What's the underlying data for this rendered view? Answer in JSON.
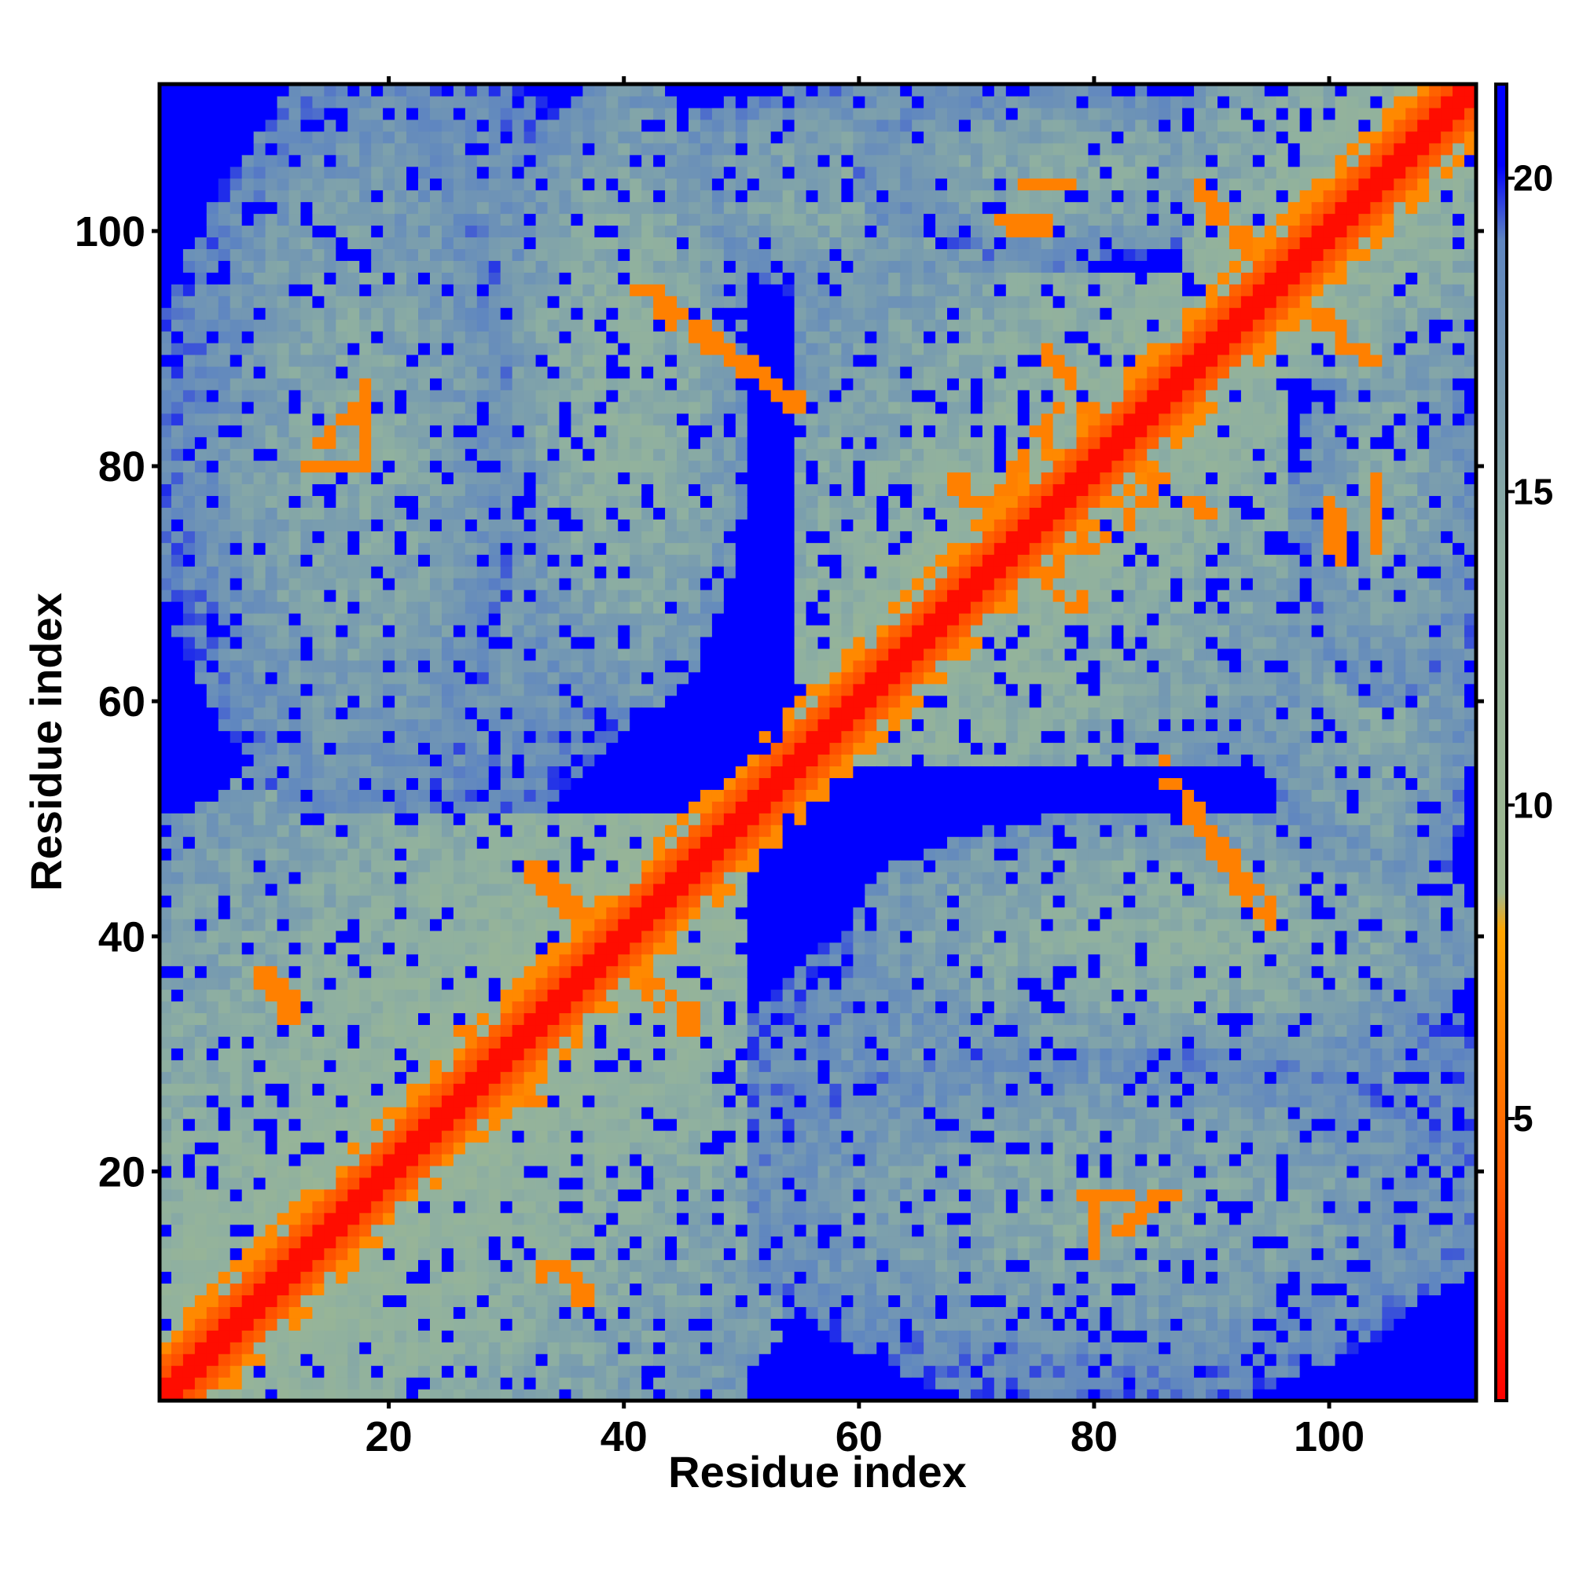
{
  "chart_data": {
    "type": "heatmap",
    "title": "",
    "xlabel": "Residue index",
    "ylabel": "Residue index",
    "n_residues": 112,
    "xlim": [
      0.5,
      112.5
    ],
    "ylim": [
      0.5,
      112.5
    ],
    "x_ticks": [
      20,
      40,
      60,
      80,
      100
    ],
    "y_ticks": [
      20,
      40,
      60,
      80,
      100
    ],
    "colorbar": {
      "ticks": [
        5,
        10,
        15,
        20
      ],
      "range": [
        0.5,
        21.5
      ],
      "stops": [
        {
          "value": 0.5,
          "color": "#ff0000"
        },
        {
          "value": 4.0,
          "color": "#ff5a00"
        },
        {
          "value": 8.0,
          "color": "#ffa500"
        },
        {
          "value": 8.6,
          "color": "#9fb98f"
        },
        {
          "value": 14.0,
          "color": "#8fb0a0"
        },
        {
          "value": 19.0,
          "color": "#5f86c0"
        },
        {
          "value": 20.2,
          "color": "#0000ff"
        },
        {
          "value": 21.5,
          "color": "#0000ff"
        }
      ]
    },
    "diagonal_value": 1,
    "background_value": 21,
    "domains": [
      {
        "range": [
          1,
          50
        ],
        "level": 12
      },
      {
        "range": [
          55,
          96
        ],
        "level": 12.5
      },
      {
        "range": [
          88,
          112
        ],
        "level": 12
      }
    ],
    "contact_blocks": [
      {
        "x": [
          4,
          30
        ],
        "y": [
          50,
          112
        ],
        "level": 15
      },
      {
        "x": [
          30,
          50
        ],
        "y": [
          60,
          112
        ],
        "level": 14
      },
      {
        "x": [
          60,
          95
        ],
        "y": [
          98,
          112
        ],
        "level": 15
      },
      {
        "x": [
          95,
          112
        ],
        "y": [
          40,
          85
        ],
        "level": 15
      },
      {
        "x": [
          50,
          112
        ],
        "y": [
          1,
          45
        ],
        "level": 15.5
      },
      {
        "x": [
          30,
          55
        ],
        "y": [
          1,
          30
        ],
        "level": 13.5
      }
    ],
    "strong_contacts": [
      {
        "from": [
          41,
          95
        ],
        "to": [
          54,
          86
        ],
        "value": 6
      },
      {
        "from": [
          76,
          90
        ],
        "to": [
          82,
          81
        ],
        "value": 6
      },
      {
        "from": [
          71,
          76
        ],
        "to": [
          78,
          86
        ],
        "value": 6
      },
      {
        "from": [
          73,
          73
        ],
        "to": [
          79,
          68
        ],
        "value": 6
      },
      {
        "from": [
          85,
          55
        ],
        "to": [
          95,
          42
        ],
        "value": 6
      },
      {
        "from": [
          98,
          95
        ],
        "to": [
          102,
          90
        ],
        "value": 6
      },
      {
        "from": [
          89,
          104
        ],
        "to": [
          95,
          96
        ],
        "value": 6
      },
      {
        "from": [
          33,
          46
        ],
        "to": [
          38,
          40
        ],
        "value": 6
      },
      {
        "from": [
          39,
          39
        ],
        "to": [
          46,
          32
        ],
        "value": 6
      },
      {
        "from": [
          26,
          33
        ],
        "to": [
          30,
          27
        ],
        "value": 6
      },
      {
        "from": [
          9,
          37
        ],
        "to": [
          12,
          33
        ],
        "value": 6
      },
      {
        "from": [
          34,
          12
        ],
        "to": [
          37,
          9
        ],
        "value": 6
      },
      {
        "from": [
          79,
          18
        ],
        "to": [
          87,
          18
        ],
        "value": 6
      },
      {
        "from": [
          80,
          17
        ],
        "to": [
          80,
          13
        ],
        "value": 6
      },
      {
        "from": [
          14,
          82
        ],
        "to": [
          18,
          85
        ],
        "value": 6
      },
      {
        "from": [
          100,
          77
        ],
        "to": [
          101,
          72
        ],
        "value": 6
      },
      {
        "from": [
          73,
          104
        ],
        "to": [
          79,
          104
        ],
        "value": 6
      }
    ]
  }
}
